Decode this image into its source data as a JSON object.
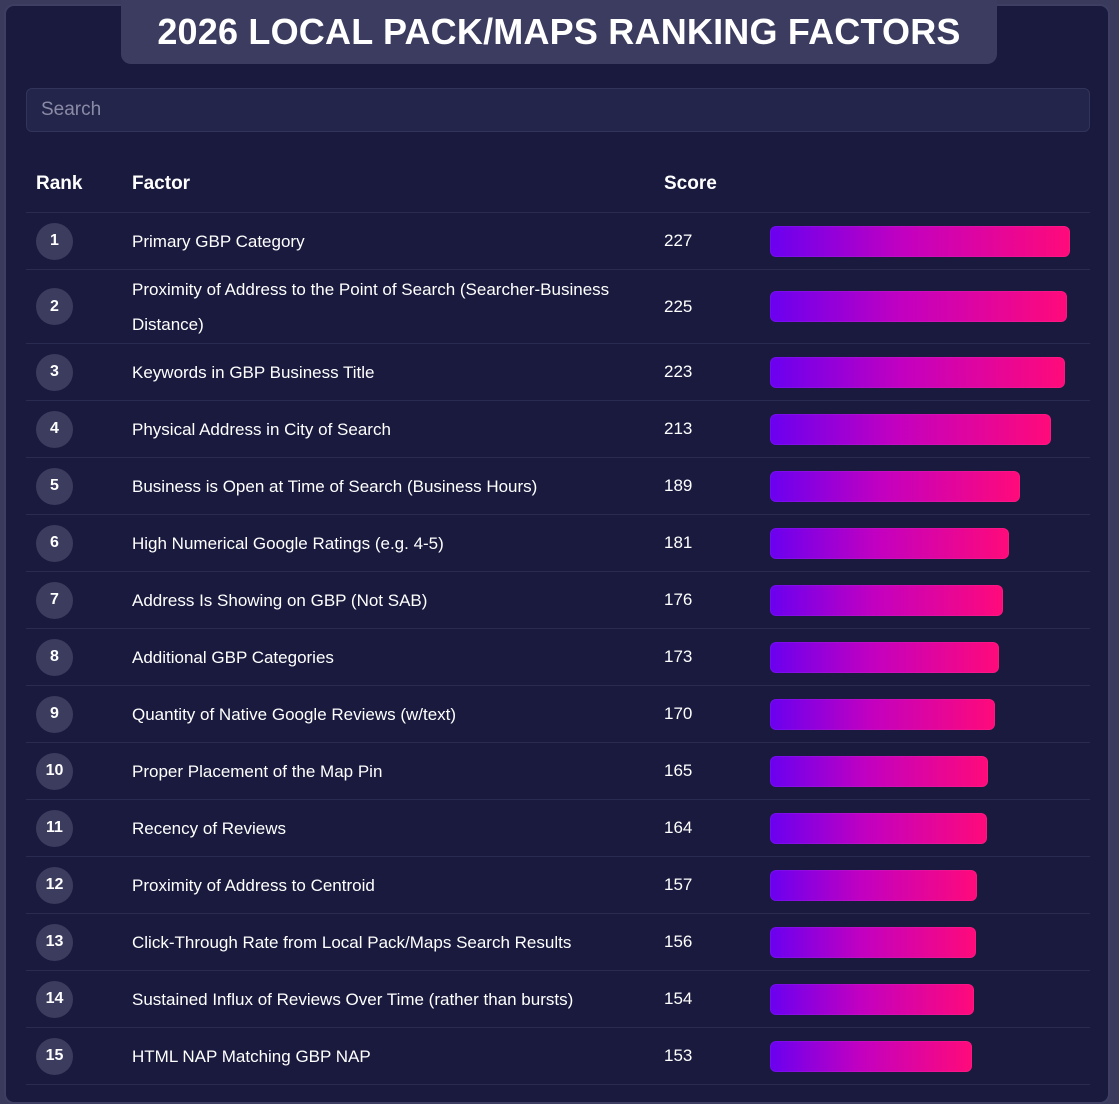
{
  "title": "2026 LOCAL PACK/MAPS RANKING FACTORS",
  "search": {
    "placeholder": "Search",
    "value": ""
  },
  "table": {
    "columns": {
      "rank": "Rank",
      "factor": "Factor",
      "score": "Score"
    },
    "max_score": 227,
    "rows": [
      {
        "rank": "1",
        "factor": "Primary GBP Category",
        "score": 227
      },
      {
        "rank": "2",
        "factor": "Proximity of Address to the Point of Search (Searcher-Business Distance)",
        "score": 225
      },
      {
        "rank": "3",
        "factor": "Keywords in GBP Business Title",
        "score": 223
      },
      {
        "rank": "4",
        "factor": "Physical Address in City of Search",
        "score": 213
      },
      {
        "rank": "5",
        "factor": "Business is Open at Time of Search (Business Hours)",
        "score": 189
      },
      {
        "rank": "6",
        "factor": "High Numerical Google Ratings (e.g. 4-5)",
        "score": 181
      },
      {
        "rank": "7",
        "factor": "Address Is Showing on GBP (Not SAB)",
        "score": 176
      },
      {
        "rank": "8",
        "factor": "Additional GBP Categories",
        "score": 173
      },
      {
        "rank": "9",
        "factor": "Quantity of Native Google Reviews (w/text)",
        "score": 170
      },
      {
        "rank": "10",
        "factor": "Proper Placement of the Map Pin",
        "score": 165
      },
      {
        "rank": "11",
        "factor": "Recency of Reviews",
        "score": 164
      },
      {
        "rank": "12",
        "factor": "Proximity of Address to Centroid",
        "score": 157
      },
      {
        "rank": "13",
        "factor": "Click-Through Rate from Local Pack/Maps Search Results",
        "score": 156
      },
      {
        "rank": "14",
        "factor": "Sustained Influx of Reviews Over Time (rather than bursts)",
        "score": 154
      },
      {
        "rank": "15",
        "factor": "HTML NAP Matching GBP NAP",
        "score": 153
      }
    ]
  },
  "colors": {
    "background": "#191a3e",
    "bar_start": "#6a00f0",
    "bar_mid": "#c300c0",
    "bar_end": "#ff0a7a"
  }
}
